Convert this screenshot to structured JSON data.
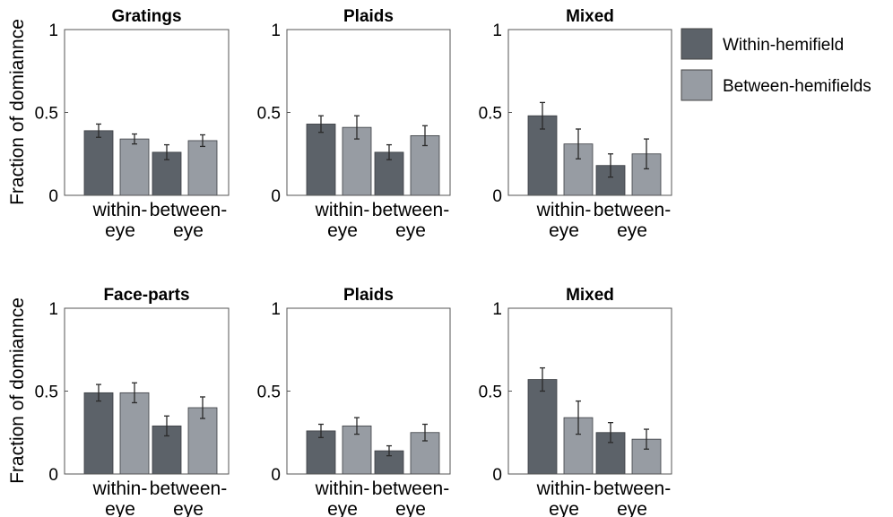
{
  "figure": {
    "ylabel": "Fraction of domiannce",
    "colors": {
      "within": "#5c6269",
      "between": "#979ca3",
      "axis": "#555555"
    }
  },
  "legend": {
    "items": [
      {
        "label": "Within-hemifield",
        "color": "#5c6269"
      },
      {
        "label": "Between-hemifields",
        "color": "#979ca3"
      }
    ]
  },
  "chart_data": [
    {
      "type": "bar",
      "title": "Gratings",
      "categories": [
        "within-\neye",
        "between-\neye"
      ],
      "ylim": [
        0,
        1
      ],
      "yticks": [
        0,
        0.5,
        1
      ],
      "ytick_labels": [
        "0",
        "0.5",
        "1"
      ],
      "series": [
        {
          "name": "Within-hemifield",
          "values": [
            0.39,
            0.26
          ],
          "errors": [
            0.04,
            0.045
          ]
        },
        {
          "name": "Between-hemifields",
          "values": [
            0.34,
            0.33
          ],
          "errors": [
            0.03,
            0.035
          ]
        }
      ]
    },
    {
      "type": "bar",
      "title": "Plaids",
      "categories": [
        "within-\neye",
        "between-\neye"
      ],
      "ylim": [
        0,
        1
      ],
      "yticks": [
        0,
        0.5,
        1
      ],
      "ytick_labels": [
        "0",
        "0.5",
        "1"
      ],
      "series": [
        {
          "name": "Within-hemifield",
          "values": [
            0.43,
            0.26
          ],
          "errors": [
            0.05,
            0.045
          ]
        },
        {
          "name": "Between-hemifields",
          "values": [
            0.41,
            0.36
          ],
          "errors": [
            0.07,
            0.06
          ]
        }
      ]
    },
    {
      "type": "bar",
      "title": "Mixed",
      "categories": [
        "within-\neye",
        "between-\neye"
      ],
      "ylim": [
        0,
        1
      ],
      "yticks": [
        0,
        0.5,
        1
      ],
      "ytick_labels": [
        "0",
        "0.5",
        "1"
      ],
      "series": [
        {
          "name": "Within-hemifield",
          "values": [
            0.48,
            0.18
          ],
          "errors": [
            0.08,
            0.07
          ]
        },
        {
          "name": "Between-hemifields",
          "values": [
            0.31,
            0.25
          ],
          "errors": [
            0.09,
            0.09
          ]
        }
      ]
    },
    {
      "type": "bar",
      "title": "Face-parts",
      "categories": [
        "within-\neye",
        "between-\neye"
      ],
      "ylim": [
        0,
        1
      ],
      "yticks": [
        0,
        0.5,
        1
      ],
      "ytick_labels": [
        "0",
        "0.5",
        "1"
      ],
      "series": [
        {
          "name": "Within-hemifield",
          "values": [
            0.49,
            0.29
          ],
          "errors": [
            0.05,
            0.06
          ]
        },
        {
          "name": "Between-hemifields",
          "values": [
            0.49,
            0.4
          ],
          "errors": [
            0.06,
            0.065
          ]
        }
      ]
    },
    {
      "type": "bar",
      "title": "Plaids",
      "categories": [
        "within-\neye",
        "between-\neye"
      ],
      "ylim": [
        0,
        1
      ],
      "yticks": [
        0,
        0.5,
        1
      ],
      "ytick_labels": [
        "0",
        "0.5",
        "1"
      ],
      "series": [
        {
          "name": "Within-hemifield",
          "values": [
            0.26,
            0.14
          ],
          "errors": [
            0.04,
            0.03
          ]
        },
        {
          "name": "Between-hemifields",
          "values": [
            0.29,
            0.25
          ],
          "errors": [
            0.05,
            0.05
          ]
        }
      ]
    },
    {
      "type": "bar",
      "title": "Mixed",
      "categories": [
        "within-\neye",
        "between-\neye"
      ],
      "ylim": [
        0,
        1
      ],
      "yticks": [
        0,
        0.5,
        1
      ],
      "ytick_labels": [
        "0",
        "0.5",
        "1"
      ],
      "series": [
        {
          "name": "Within-hemifield",
          "values": [
            0.57,
            0.25
          ],
          "errors": [
            0.07,
            0.06
          ]
        },
        {
          "name": "Between-hemifields",
          "values": [
            0.34,
            0.21
          ],
          "errors": [
            0.1,
            0.06
          ]
        }
      ]
    }
  ]
}
